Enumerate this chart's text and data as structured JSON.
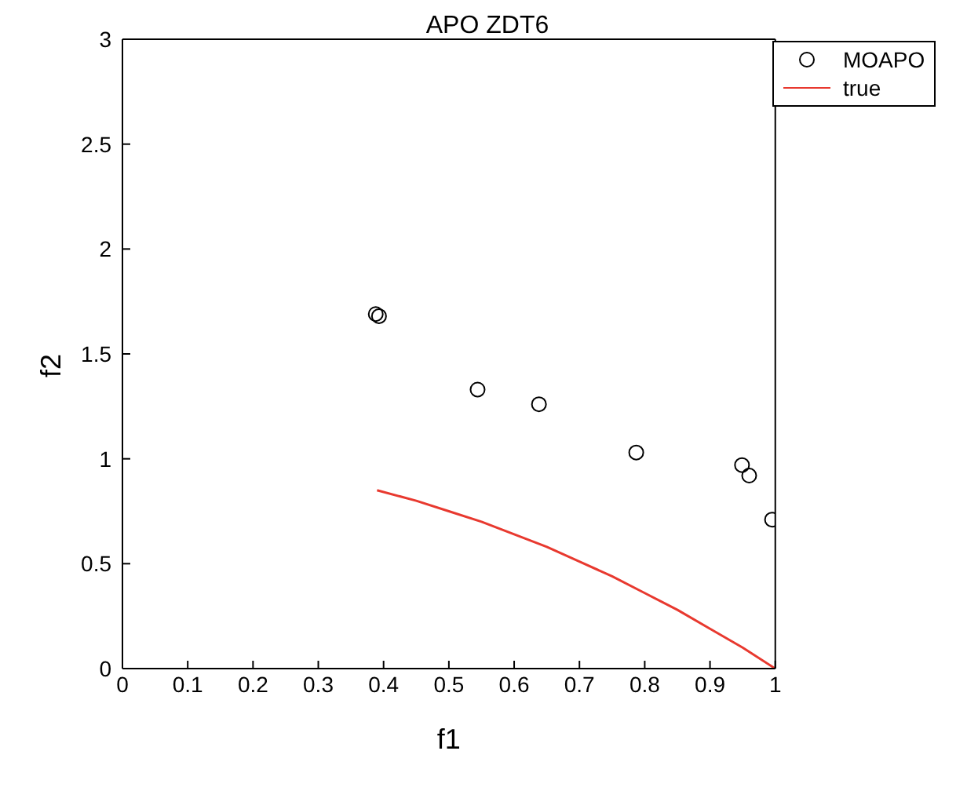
{
  "chart_data": {
    "type": "scatter",
    "title": "APO ZDT6",
    "xlabel": "f1",
    "ylabel": "f2",
    "xlim": [
      0,
      1
    ],
    "xticks": [
      0,
      0.1,
      0.2,
      0.3,
      0.4,
      0.5,
      0.6,
      0.7,
      0.8,
      0.9,
      1
    ],
    "ylim": [
      0,
      3
    ],
    "yticks": [
      0,
      0.5,
      1,
      1.5,
      2,
      2.5,
      3
    ],
    "grid": false,
    "legend": "top right",
    "series": [
      {
        "name": "MOAPO",
        "marker": "circle",
        "color": "#000000",
        "x": [
          0.388,
          0.393,
          0.544,
          0.638,
          0.787,
          0.949,
          0.96,
          0.995
        ],
        "values": [
          1.69,
          1.68,
          1.33,
          1.26,
          1.03,
          0.97,
          0.92,
          0.71
        ]
      },
      {
        "name": "true",
        "type": "line",
        "marker": "none",
        "line_style": "solid",
        "color": "#e8392f",
        "x": [
          0.39,
          0.45,
          0.5,
          0.55,
          0.6,
          0.65,
          0.7,
          0.75,
          0.8,
          0.85,
          0.9,
          0.95,
          1
        ],
        "values": [
          0.85,
          0.8,
          0.75,
          0.7,
          0.64,
          0.58,
          0.51,
          0.44,
          0.36,
          0.28,
          0.19,
          0.1,
          0
        ]
      }
    ]
  }
}
